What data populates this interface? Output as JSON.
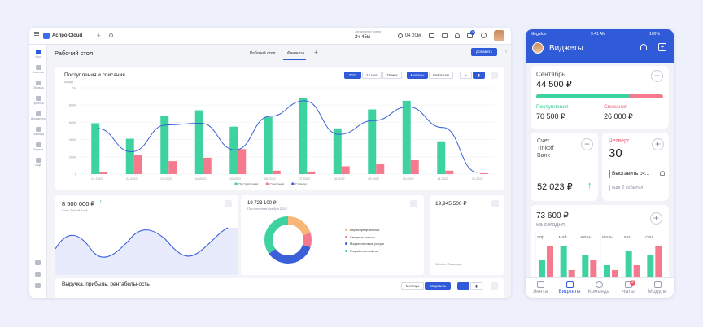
{
  "desktop": {
    "app_name": "Аспро.Cloud",
    "timer_label": "Затраченное время",
    "timer_value": "2ч 45м",
    "clock_value": "0ч 20м",
    "notif_count": "3",
    "sidebar": [
      {
        "label": "Агро"
      },
      {
        "label": "Клиенты"
      },
      {
        "label": "Облачко"
      },
      {
        "label": "Проекты"
      },
      {
        "label": "Документы"
      },
      {
        "label": "Команда"
      },
      {
        "label": "Задачи"
      },
      {
        "label": "Ещё"
      }
    ],
    "page_title": "Рабочий стол",
    "tabs": [
      {
        "label": "Рабочий стол"
      },
      {
        "label": "Финансы"
      }
    ],
    "tab_add": "+",
    "add_button": "Добавить",
    "chart_card": {
      "title": "Поступления и списания",
      "subtitle": "Аспро",
      "ranges": [
        "2022",
        "12 мес",
        "15 мес"
      ],
      "periods": [
        "Месяцы",
        "Кварталы"
      ]
    },
    "widgets": {
      "w1_value": "8 500 000 ₽",
      "w1_label": "Счет Tinkoff Bank",
      "w2_value": "19 723 100 ₽",
      "w2_label": "Поступления ноября 2022",
      "w3_value": "19,945,500 ₽",
      "w3_label": "Winston / Тинькофф"
    },
    "donut": {
      "legend": [
        "Нераспределенные",
        "Сводные взносы",
        "Маркетинговые услуги",
        "Разработка сайтов"
      ],
      "values": [
        20,
        10,
        35,
        35
      ],
      "colors": [
        "#f6b779",
        "#f57a8e",
        "#3a5fd9",
        "#3ed2a0"
      ]
    },
    "bottom": {
      "title": "Выручка, прибыль, рентабельность",
      "periods": [
        "Месяцы",
        "Кварталы"
      ]
    }
  },
  "chart_data": {
    "type": "bar",
    "categories": [
      "01.2022",
      "02.2022",
      "03.2022",
      "04.2022",
      "05.2022",
      "06.2022",
      "07.2022",
      "08.2022",
      "09.2022",
      "10.2022",
      "11.2022",
      "12.2022"
    ],
    "series": [
      {
        "name": "Поступления",
        "values": [
          5.9,
          4.1,
          6.7,
          7.4,
          5.5,
          6.6,
          8.8,
          5.3,
          7.5,
          8.5,
          3.8,
          0
        ]
      },
      {
        "name": "Списания",
        "values": [
          0.2,
          2.2,
          1.5,
          1.9,
          2.9,
          0.4,
          0.3,
          0.9,
          1.2,
          1.6,
          0.4,
          0.1
        ]
      },
      {
        "name": "Сальдо",
        "values": [
          5.3,
          2.6,
          5.7,
          5.9,
          2.8,
          6.7,
          8.5,
          4.6,
          6.2,
          7.8,
          5.4,
          0.2
        ]
      }
    ],
    "yticks": [
      "1M",
      "800K",
      "600K",
      "400K",
      "200K",
      "0"
    ],
    "ylim": [
      0,
      10
    ],
    "colors": [
      "#3ed2a0",
      "#f57a8e",
      "#3a5fd9"
    ],
    "legend_position": "bottom"
  },
  "phone": {
    "carrier": "Megafon",
    "time": "9:41 AM",
    "battery": "100%",
    "title": "Виджеты",
    "month": {
      "name": "Сентябрь",
      "total": "44 500 ₽",
      "in_label": "Поступления",
      "in_value": "70 500 ₽",
      "out_label": "Списания",
      "out_value": "26 000 ₽",
      "in_ratio": 0.73
    },
    "account": {
      "label1": "Счет",
      "label2": "Tinkoff",
      "label3": "Bank",
      "value": "52 023 ₽"
    },
    "day": {
      "weekday": "Четверг",
      "num": "30",
      "event": "Выставить сч...",
      "more": "еще 2 события"
    },
    "today": {
      "value": "73 600 ₽",
      "label": "на сегодня",
      "months": [
        "апр",
        "май",
        "июнь",
        "июль",
        "авг",
        "сен"
      ],
      "in": [
        4,
        7,
        5,
        3,
        6,
        5
      ],
      "out": [
        7,
        2,
        4,
        2,
        3,
        7
      ]
    },
    "tabs": [
      {
        "label": "Лента"
      },
      {
        "label": "Виджеты"
      },
      {
        "label": "Команда"
      },
      {
        "label": "Чаты"
      },
      {
        "label": "Модули"
      }
    ],
    "chat_badge": "2"
  }
}
